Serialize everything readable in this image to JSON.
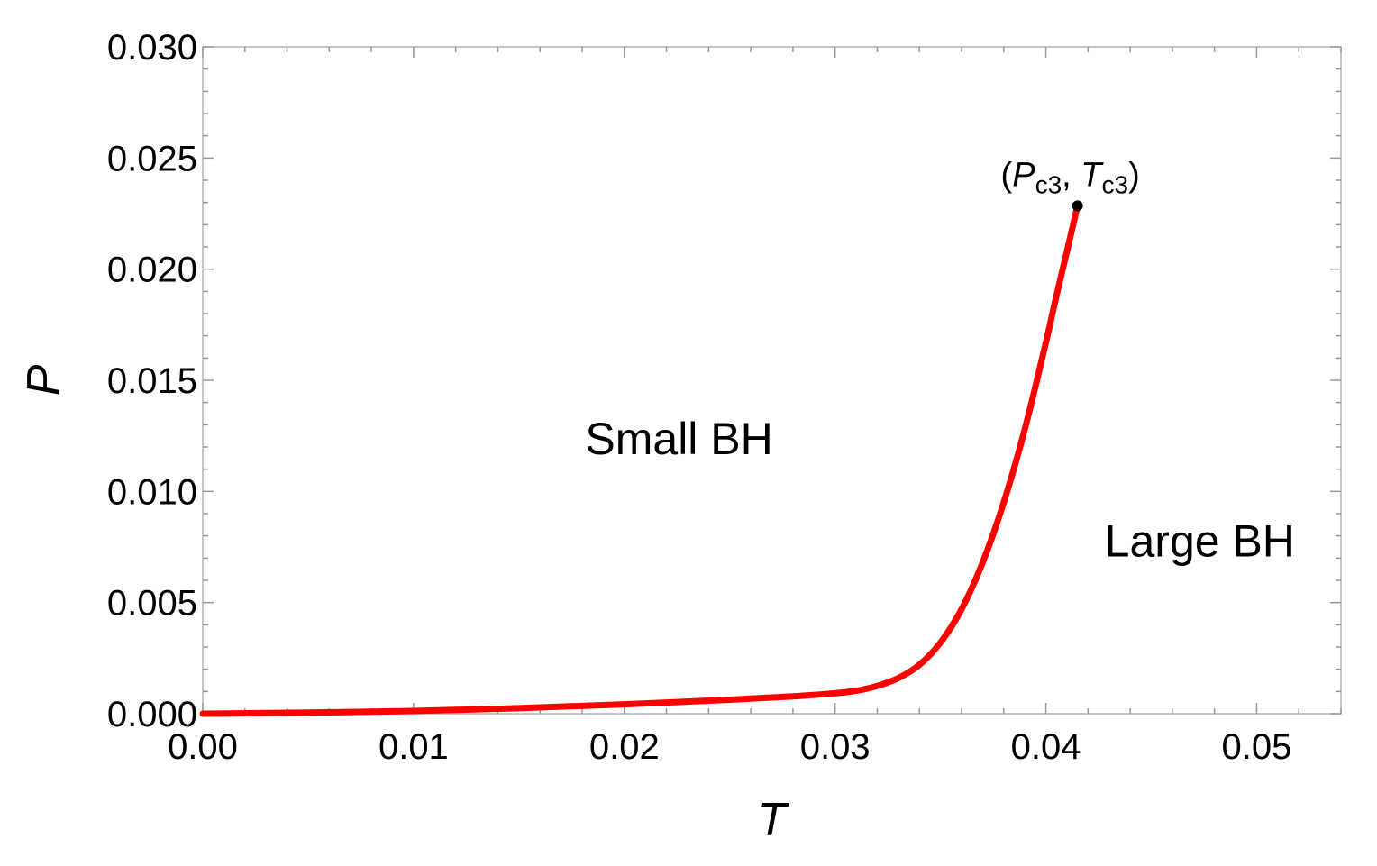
{
  "chart_data": {
    "type": "line",
    "title": "",
    "xlabel": "T",
    "ylabel": "P",
    "xlim": [
      0,
      0.054
    ],
    "ylim": [
      0,
      0.03
    ],
    "xticks": [
      "0.00",
      "0.01",
      "0.02",
      "0.03",
      "0.04",
      "0.05"
    ],
    "yticks": [
      "0.000",
      "0.005",
      "0.010",
      "0.015",
      "0.020",
      "0.025",
      "0.030"
    ],
    "grid": false,
    "legend": "none",
    "colors": {
      "curve": "#ff0000",
      "point": "#000000",
      "frame": "#b3b3b3"
    },
    "series": [
      {
        "x": [
          0.0,
          0.005,
          0.01,
          0.015,
          0.02,
          0.025,
          0.028,
          0.03,
          0.031,
          0.032,
          0.033,
          0.034,
          0.035,
          0.036,
          0.037,
          0.038,
          0.039,
          0.04,
          0.0405,
          0.041,
          0.0415
        ],
        "y": [
          0.0,
          5e-05,
          0.00012,
          0.00025,
          0.00042,
          0.00063,
          0.00078,
          0.00092,
          0.00103,
          0.00125,
          0.0016,
          0.0022,
          0.0032,
          0.0047,
          0.0068,
          0.0095,
          0.0128,
          0.0167,
          0.0188,
          0.0208,
          0.02285
        ]
      }
    ],
    "critical_point": {
      "x": 0.0415,
      "y": 0.02285,
      "label": {
        "open": "(",
        "p": "P",
        "p_sub": "c3",
        "sep": ", ",
        "t": "T",
        "t_sub": "c3",
        "close": ")"
      }
    },
    "annotations": [
      {
        "text": "Small BH",
        "x": 0.0226,
        "y": 0.0124
      },
      {
        "text": "Large BH",
        "x": 0.0473,
        "y": 0.0078
      }
    ]
  }
}
